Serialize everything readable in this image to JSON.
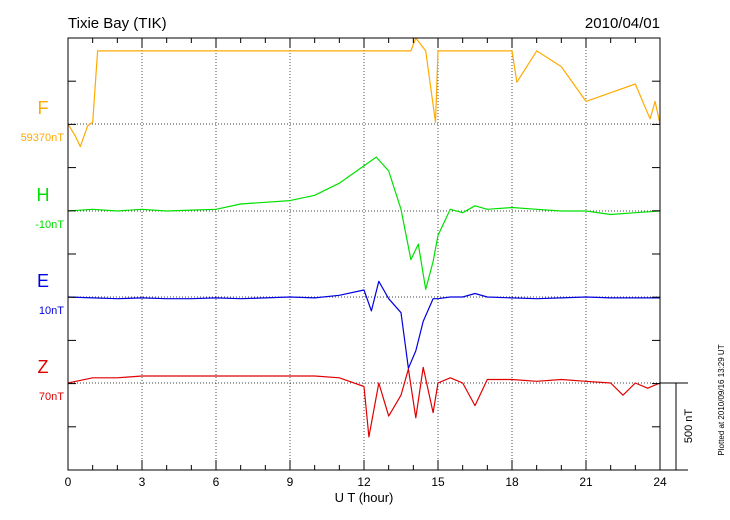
{
  "chart_data": {
    "type": "line",
    "title": "Tixie Bay (TIK)",
    "date": "2010/04/01",
    "xlabel": "U T (hour)",
    "xlim": [
      0,
      24
    ],
    "x_ticks": [
      "0",
      "3",
      "6",
      "9",
      "12",
      "15",
      "18",
      "21",
      "24"
    ],
    "scale_bar": {
      "label": "500 nT",
      "value": 500
    },
    "footer": "Plotted at 2010/09/16 13:29 UT",
    "grid": true,
    "series": [
      {
        "name": "F",
        "baseline_label": "59370nT",
        "baseline": 59370,
        "color": "#ffaa00",
        "points": [
          [
            0,
            59370
          ],
          [
            0.3,
            59300
          ],
          [
            0.5,
            59240
          ],
          [
            0.8,
            59360
          ],
          [
            1.0,
            59380
          ],
          [
            1.2,
            59790
          ],
          [
            2.0,
            59790
          ],
          [
            4.0,
            59790
          ],
          [
            6.0,
            59790
          ],
          [
            8.0,
            59790
          ],
          [
            10.0,
            59790
          ],
          [
            11.0,
            59790
          ],
          [
            13.0,
            59790
          ],
          [
            13.9,
            59790
          ],
          [
            14.1,
            59960
          ],
          [
            14.5,
            59790
          ],
          [
            14.9,
            59380
          ],
          [
            15.0,
            59790
          ],
          [
            17.0,
            59790
          ],
          [
            18.0,
            59790
          ],
          [
            18.2,
            59610
          ],
          [
            19.0,
            59790
          ],
          [
            20.0,
            59700
          ],
          [
            21.0,
            59500
          ],
          [
            22.0,
            59550
          ],
          [
            23.0,
            59600
          ],
          [
            23.6,
            59400
          ],
          [
            23.8,
            59500
          ],
          [
            24.0,
            59370
          ]
        ]
      },
      {
        "name": "H",
        "baseline_label": "-10nT",
        "baseline": -10,
        "color": "#00e000",
        "points": [
          [
            0,
            -10
          ],
          [
            1,
            0
          ],
          [
            2,
            -10
          ],
          [
            3,
            0
          ],
          [
            4,
            -10
          ],
          [
            5,
            -5
          ],
          [
            6,
            0
          ],
          [
            7,
            30
          ],
          [
            8,
            40
          ],
          [
            9,
            50
          ],
          [
            10,
            80
          ],
          [
            11,
            150
          ],
          [
            11.5,
            200
          ],
          [
            12,
            250
          ],
          [
            12.5,
            300
          ],
          [
            13,
            220
          ],
          [
            13.5,
            0
          ],
          [
            13.9,
            -290
          ],
          [
            14.2,
            -200
          ],
          [
            14.5,
            -460
          ],
          [
            14.8,
            -300
          ],
          [
            15,
            -150
          ],
          [
            15.5,
            0
          ],
          [
            16,
            -20
          ],
          [
            16.5,
            20
          ],
          [
            17,
            0
          ],
          [
            18,
            10
          ],
          [
            19,
            0
          ],
          [
            20,
            -10
          ],
          [
            21,
            -10
          ],
          [
            22,
            -30
          ],
          [
            23,
            -20
          ],
          [
            24,
            -10
          ]
        ]
      },
      {
        "name": "E",
        "baseline_label": "10nT",
        "baseline": 10,
        "color": "#0000e0",
        "points": [
          [
            0,
            10
          ],
          [
            1,
            5
          ],
          [
            2,
            0
          ],
          [
            3,
            5
          ],
          [
            4,
            0
          ],
          [
            5,
            0
          ],
          [
            6,
            5
          ],
          [
            7,
            0
          ],
          [
            8,
            5
          ],
          [
            9,
            10
          ],
          [
            10,
            5
          ],
          [
            11,
            20
          ],
          [
            12,
            50
          ],
          [
            12.3,
            -70
          ],
          [
            12.6,
            100
          ],
          [
            13,
            0
          ],
          [
            13.5,
            -80
          ],
          [
            13.8,
            -400
          ],
          [
            14.1,
            -300
          ],
          [
            14.4,
            -130
          ],
          [
            14.8,
            0
          ],
          [
            15,
            0
          ],
          [
            15.5,
            10
          ],
          [
            16,
            10
          ],
          [
            16.5,
            30
          ],
          [
            17,
            10
          ],
          [
            18,
            5
          ],
          [
            19,
            0
          ],
          [
            20,
            5
          ],
          [
            21,
            10
          ],
          [
            22,
            5
          ],
          [
            23,
            5
          ],
          [
            24,
            5
          ]
        ]
      },
      {
        "name": "Z",
        "baseline_label": "70nT",
        "baseline": 70,
        "color": "#e00000",
        "points": [
          [
            0,
            70
          ],
          [
            1,
            100
          ],
          [
            2,
            100
          ],
          [
            3,
            110
          ],
          [
            4,
            110
          ],
          [
            5,
            110
          ],
          [
            6,
            110
          ],
          [
            7,
            110
          ],
          [
            8,
            110
          ],
          [
            9,
            110
          ],
          [
            10,
            110
          ],
          [
            11,
            100
          ],
          [
            12,
            50
          ],
          [
            12.2,
            -240
          ],
          [
            12.6,
            70
          ],
          [
            13,
            -120
          ],
          [
            13.5,
            0
          ],
          [
            13.8,
            150
          ],
          [
            14.1,
            -130
          ],
          [
            14.4,
            160
          ],
          [
            14.8,
            -100
          ],
          [
            15,
            70
          ],
          [
            15.5,
            100
          ],
          [
            16,
            70
          ],
          [
            16.5,
            -60
          ],
          [
            17,
            90
          ],
          [
            18,
            90
          ],
          [
            19,
            80
          ],
          [
            20,
            90
          ],
          [
            21,
            80
          ],
          [
            22,
            70
          ],
          [
            22.5,
            0
          ],
          [
            23,
            70
          ],
          [
            23.5,
            40
          ],
          [
            24,
            70
          ]
        ]
      }
    ]
  }
}
